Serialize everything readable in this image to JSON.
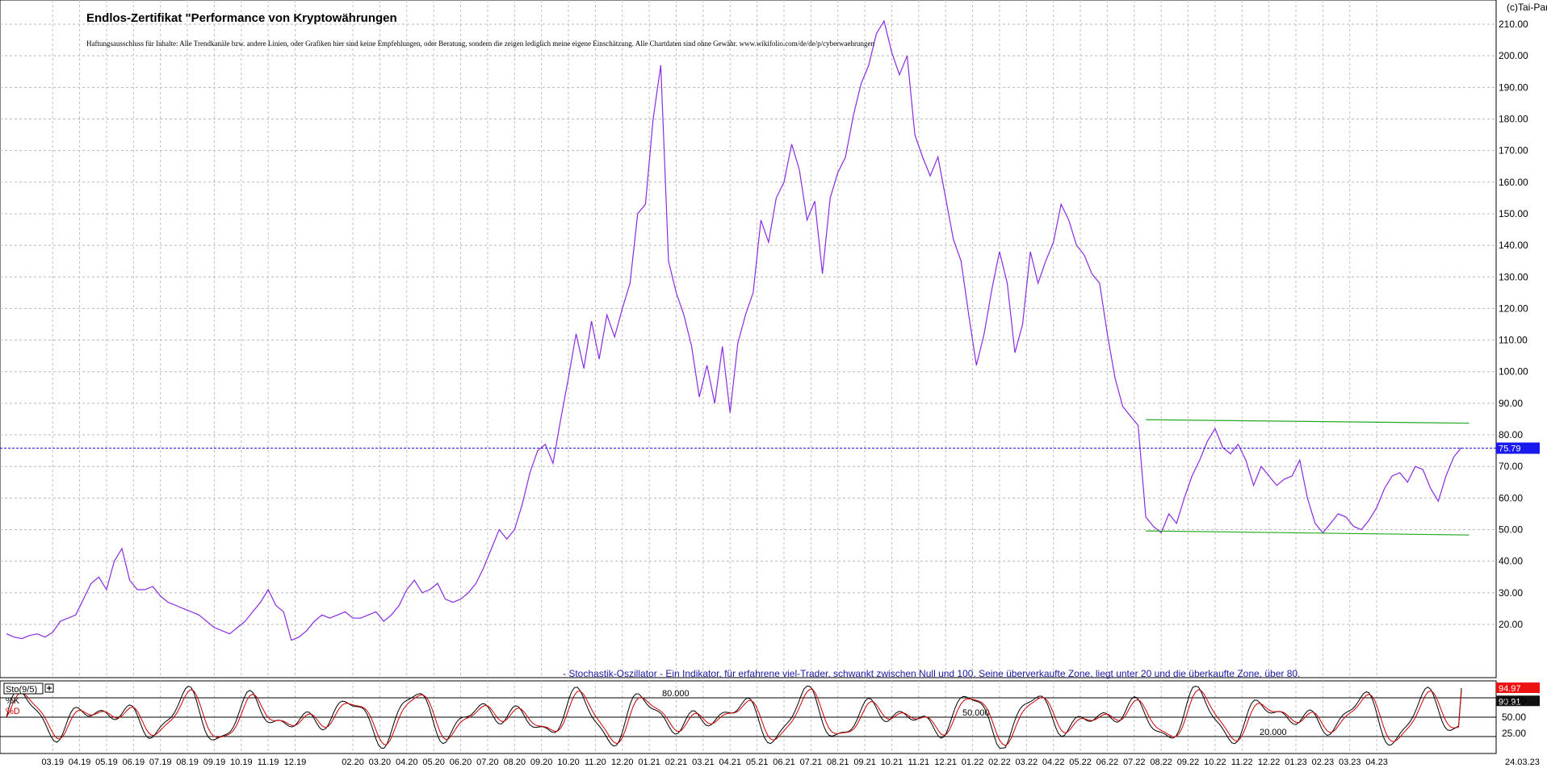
{
  "chart_data": [
    {
      "type": "line",
      "title": "Endlos-Zertifikat \"Performance von Kryptowährungen",
      "disclaimer": "Haftungsausschluss für Inhalte: Alle Trendkanäle bzw. andere Linien, oder Grafiken hier sind keine Empfehlungen, oder Beratung, sondern die zeigen lediglich meine eigene Einschätzung. Alle Chartdaten sind ohne Gewähr. www.wikifolio.com/de/de/p/cyberwaehrungen",
      "copyright": "(c)Tai-Pan",
      "y_ticks": [
        "20.00",
        "30.00",
        "40.00",
        "50.00",
        "60.00",
        "70.00",
        "80.00",
        "90.00",
        "100.00",
        "110.00",
        "120.00",
        "130.00",
        "140.00",
        "150.00",
        "160.00",
        "170.00",
        "180.00",
        "190.00",
        "200.00",
        "210.00"
      ],
      "ylim": [
        15,
        213
      ],
      "grid": true,
      "current_value": 75.79,
      "current_label": "75.79",
      "series": [
        {
          "color": "#8a2be2",
          "points": [
            [
              0,
              17
            ],
            [
              2,
              16
            ],
            [
              4,
              15.5
            ],
            [
              6,
              16.5
            ],
            [
              8,
              17
            ],
            [
              10,
              16
            ],
            [
              12,
              17.5
            ],
            [
              14,
              21
            ],
            [
              16,
              22
            ],
            [
              18,
              23
            ],
            [
              20,
              28
            ],
            [
              22,
              33
            ],
            [
              24,
              35
            ],
            [
              26,
              31
            ],
            [
              28,
              40
            ],
            [
              30,
              44
            ],
            [
              32,
              34
            ],
            [
              34,
              31
            ],
            [
              36,
              31
            ],
            [
              38,
              32
            ],
            [
              40,
              29
            ],
            [
              42,
              27
            ],
            [
              44,
              26
            ],
            [
              46,
              25
            ],
            [
              48,
              24
            ],
            [
              50,
              23
            ],
            [
              52,
              21
            ],
            [
              54,
              19
            ],
            [
              56,
              18
            ],
            [
              58,
              17
            ],
            [
              60,
              19
            ],
            [
              62,
              21
            ],
            [
              64,
              24
            ],
            [
              66,
              27
            ],
            [
              68,
              31
            ],
            [
              70,
              26
            ],
            [
              72,
              24
            ],
            [
              74,
              15
            ],
            [
              76,
              16
            ],
            [
              78,
              18
            ],
            [
              80,
              21
            ],
            [
              82,
              23
            ],
            [
              84,
              22
            ],
            [
              86,
              23
            ],
            [
              88,
              24
            ],
            [
              90,
              22
            ],
            [
              92,
              22
            ],
            [
              94,
              23
            ],
            [
              96,
              24
            ],
            [
              98,
              21
            ],
            [
              100,
              23
            ],
            [
              102,
              26
            ],
            [
              104,
              31
            ],
            [
              106,
              34
            ],
            [
              108,
              30
            ],
            [
              110,
              31
            ],
            [
              112,
              33
            ],
            [
              114,
              28
            ],
            [
              116,
              27
            ],
            [
              118,
              28
            ],
            [
              120,
              30
            ],
            [
              122,
              33
            ],
            [
              124,
              38
            ],
            [
              126,
              44
            ],
            [
              128,
              50
            ],
            [
              130,
              47
            ],
            [
              132,
              50
            ],
            [
              134,
              58
            ],
            [
              136,
              68
            ],
            [
              138,
              75
            ],
            [
              140,
              77
            ],
            [
              142,
              71
            ],
            [
              144,
              85
            ],
            [
              146,
              98
            ],
            [
              148,
              112
            ],
            [
              150,
              101
            ],
            [
              152,
              116
            ],
            [
              154,
              104
            ],
            [
              156,
              118
            ],
            [
              158,
              111
            ],
            [
              160,
              120
            ],
            [
              162,
              128
            ],
            [
              164,
              150
            ],
            [
              166,
              153
            ],
            [
              168,
              180
            ],
            [
              170,
              197
            ],
            [
              172,
              135
            ],
            [
              174,
              125
            ],
            [
              176,
              118
            ],
            [
              178,
              108
            ],
            [
              180,
              92
            ],
            [
              182,
              102
            ],
            [
              184,
              90
            ],
            [
              186,
              108
            ],
            [
              188,
              87
            ],
            [
              190,
              109
            ],
            [
              192,
              118
            ],
            [
              194,
              125
            ],
            [
              196,
              148
            ],
            [
              198,
              141
            ],
            [
              200,
              155
            ],
            [
              202,
              160
            ],
            [
              204,
              172
            ],
            [
              206,
              164
            ],
            [
              208,
              148
            ],
            [
              210,
              154
            ],
            [
              212,
              131
            ],
            [
              214,
              155
            ],
            [
              216,
              163
            ],
            [
              218,
              168
            ],
            [
              220,
              181
            ],
            [
              222,
              191
            ],
            [
              224,
              197
            ],
            [
              226,
              207
            ],
            [
              228,
              211
            ],
            [
              230,
              201
            ],
            [
              232,
              194
            ],
            [
              234,
              200
            ],
            [
              236,
              175
            ],
            [
              238,
              168
            ],
            [
              240,
              162
            ],
            [
              242,
              168
            ],
            [
              244,
              155
            ],
            [
              246,
              142
            ],
            [
              248,
              135
            ],
            [
              250,
              118
            ],
            [
              252,
              102
            ],
            [
              254,
              112
            ],
            [
              256,
              126
            ],
            [
              258,
              138
            ],
            [
              260,
              128
            ],
            [
              262,
              106
            ],
            [
              264,
              115
            ],
            [
              266,
              138
            ],
            [
              268,
              128
            ],
            [
              270,
              135
            ],
            [
              272,
              141
            ],
            [
              274,
              153
            ],
            [
              276,
              148
            ],
            [
              278,
              140
            ],
            [
              280,
              137
            ],
            [
              282,
              131
            ],
            [
              284,
              128
            ],
            [
              286,
              112
            ],
            [
              288,
              98
            ],
            [
              290,
              89
            ],
            [
              292,
              86
            ],
            [
              294,
              83
            ],
            [
              296,
              54
            ],
            [
              298,
              51
            ],
            [
              300,
              49
            ],
            [
              302,
              55
            ],
            [
              304,
              52
            ],
            [
              306,
              60
            ],
            [
              308,
              67
            ],
            [
              310,
              72
            ],
            [
              312,
              78
            ],
            [
              314,
              82
            ],
            [
              316,
              76
            ],
            [
              318,
              74
            ],
            [
              320,
              77
            ],
            [
              322,
              72
            ],
            [
              324,
              64
            ],
            [
              326,
              70
            ],
            [
              328,
              67
            ],
            [
              330,
              64
            ],
            [
              332,
              66
            ],
            [
              334,
              67
            ],
            [
              336,
              72
            ],
            [
              338,
              60
            ],
            [
              340,
              52
            ],
            [
              342,
              49
            ],
            [
              344,
              52
            ],
            [
              346,
              55
            ],
            [
              348,
              54
            ],
            [
              350,
              51
            ],
            [
              352,
              50
            ],
            [
              354,
              53
            ],
            [
              356,
              57
            ],
            [
              358,
              63
            ],
            [
              360,
              67
            ],
            [
              362,
              68
            ],
            [
              364,
              65
            ],
            [
              366,
              70
            ],
            [
              368,
              69
            ],
            [
              370,
              63
            ],
            [
              372,
              59
            ],
            [
              374,
              67
            ],
            [
              376,
              73
            ],
            [
              378,
              76
            ]
          ]
        }
      ],
      "channel_upper": {
        "color": "#22aa22",
        "start": [
          296,
          84.8
        ],
        "end": [
          380,
          83.7
        ]
      },
      "channel_lower": {
        "color": "#22aa22",
        "start": [
          296,
          49.6
        ],
        "end": [
          380,
          48.3
        ]
      },
      "x_ticks": [
        "03.19",
        "04.19",
        "05.19",
        "06.19",
        "07.19",
        "08.19",
        "09.19",
        "10.19",
        "11.19",
        "12.19",
        "02.20",
        "03.20",
        "04.20",
        "05.20",
        "06.20",
        "07.20",
        "08.20",
        "09.20",
        "10.20",
        "11.20",
        "12.20",
        "01.21",
        "02.21",
        "03.21",
        "04.21",
        "05.21",
        "06.21",
        "07.21",
        "08.21",
        "09.21",
        "10.21",
        "11.21",
        "12.21",
        "01.22",
        "02.22",
        "03.22",
        "04.22",
        "05.22",
        "06.22",
        "07.22",
        "08.22",
        "09.22",
        "10.22",
        "11.22",
        "12.22",
        "01.23",
        "02.23",
        "03.23",
        "04.23"
      ],
      "x_tick_index": [
        12,
        19,
        26,
        33,
        40,
        47,
        54,
        61,
        68,
        75,
        90,
        97,
        104,
        111,
        118,
        125,
        132,
        139,
        146,
        153,
        160,
        167,
        174,
        181,
        188,
        195,
        202,
        209,
        216,
        223,
        230,
        237,
        244,
        251,
        258,
        265,
        272,
        279,
        286,
        293,
        300,
        307,
        314,
        321,
        328,
        335,
        342,
        349,
        356
      ],
      "x_last_label": "24.03.23",
      "x_range": [
        0,
        384
      ]
    },
    {
      "type": "line",
      "indicator": "Sto(9/5)",
      "k_label": "%K",
      "d_label": "%D",
      "description": "- Stochastik-Oszillator - Ein Indikator, für erfahrene viel-Trader, schwankt zwischen Null und 100. Seine überverkaufte Zone, liegt unter 20 und die überkaufte Zone, über 80.",
      "levels": [
        {
          "value": 80,
          "label": "80.000"
        },
        {
          "value": 50,
          "label": "50.000"
        },
        {
          "value": 20,
          "label": "20.000"
        }
      ],
      "y_ticks": [
        "25.00",
        "50.00",
        "75.00"
      ],
      "ylim": [
        0,
        100
      ],
      "k_value": 94.97,
      "k_label_value": "94.97",
      "d_value": 90.91,
      "d_label_value": "90.91",
      "series": [
        {
          "name": "%K",
          "color": "#000000"
        },
        {
          "name": "%D",
          "color": "#cc0000"
        }
      ]
    }
  ]
}
